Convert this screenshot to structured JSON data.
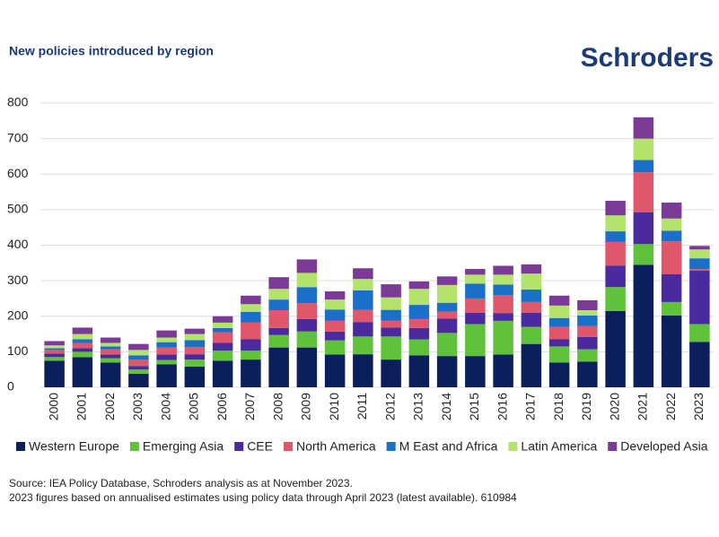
{
  "brand": "Schroders",
  "chart_data": {
    "type": "bar",
    "stacked": true,
    "title": "New policies introduced by region",
    "categories": [
      "2000",
      "2001",
      "2002",
      "2003",
      "2004",
      "2005",
      "2006",
      "2007",
      "2008",
      "2009",
      "2010",
      "2011",
      "2012",
      "2013",
      "2014",
      "2015",
      "2016",
      "2017",
      "2018",
      "2019",
      "2020",
      "2021",
      "2022",
      "2023"
    ],
    "series": [
      {
        "name": "Western Europe",
        "color": "#0b1f5c",
        "values": [
          75,
          85,
          70,
          38,
          65,
          58,
          75,
          78,
          112,
          112,
          92,
          93,
          78,
          90,
          88,
          88,
          92,
          122,
          70,
          72,
          215,
          345,
          202,
          128
        ]
      },
      {
        "name": "Emerging Asia",
        "color": "#5fc23a",
        "values": [
          10,
          15,
          12,
          12,
          12,
          20,
          28,
          25,
          35,
          45,
          40,
          50,
          65,
          45,
          65,
          90,
          95,
          48,
          45,
          35,
          67,
          58,
          38,
          50
        ]
      },
      {
        "name": "CEE",
        "color": "#4b2a9e",
        "values": [
          10,
          10,
          10,
          10,
          15,
          15,
          22,
          32,
          20,
          35,
          25,
          40,
          25,
          32,
          40,
          32,
          22,
          40,
          20,
          35,
          60,
          90,
          78,
          150
        ]
      },
      {
        "name": "North America",
        "color": "#e0566b",
        "values": [
          10,
          15,
          15,
          18,
          20,
          20,
          30,
          47,
          50,
          45,
          30,
          35,
          20,
          25,
          20,
          40,
          50,
          30,
          35,
          30,
          67,
          112,
          93,
          5
        ]
      },
      {
        "name": "M East and Africa",
        "color": "#1a70c8",
        "values": [
          5,
          10,
          8,
          12,
          15,
          20,
          12,
          30,
          30,
          45,
          32,
          55,
          30,
          40,
          25,
          42,
          30,
          35,
          25,
          30,
          30,
          35,
          30,
          30
        ]
      },
      {
        "name": "Latin America",
        "color": "#b4e36c",
        "values": [
          8,
          15,
          10,
          15,
          13,
          17,
          15,
          22,
          30,
          40,
          28,
          32,
          35,
          45,
          50,
          25,
          28,
          45,
          35,
          15,
          45,
          60,
          34,
          25
        ]
      },
      {
        "name": "Developed Asia",
        "color": "#7b3a96",
        "values": [
          12,
          18,
          15,
          17,
          20,
          15,
          18,
          24,
          33,
          38,
          23,
          30,
          37,
          21,
          24,
          16,
          25,
          26,
          28,
          28,
          41,
          60,
          45,
          10
        ]
      }
    ],
    "ylim": [
      0,
      800
    ],
    "yticks": [
      0,
      100,
      200,
      300,
      400,
      500,
      600,
      700,
      800
    ],
    "grid": true,
    "legend": "bottom"
  },
  "notes": [
    "Source: IEA Policy Database, Schroders analysis as at November 2023.",
    "2023 figures based on annualised estimates using policy data through April 2023 (latest available). 610984"
  ]
}
